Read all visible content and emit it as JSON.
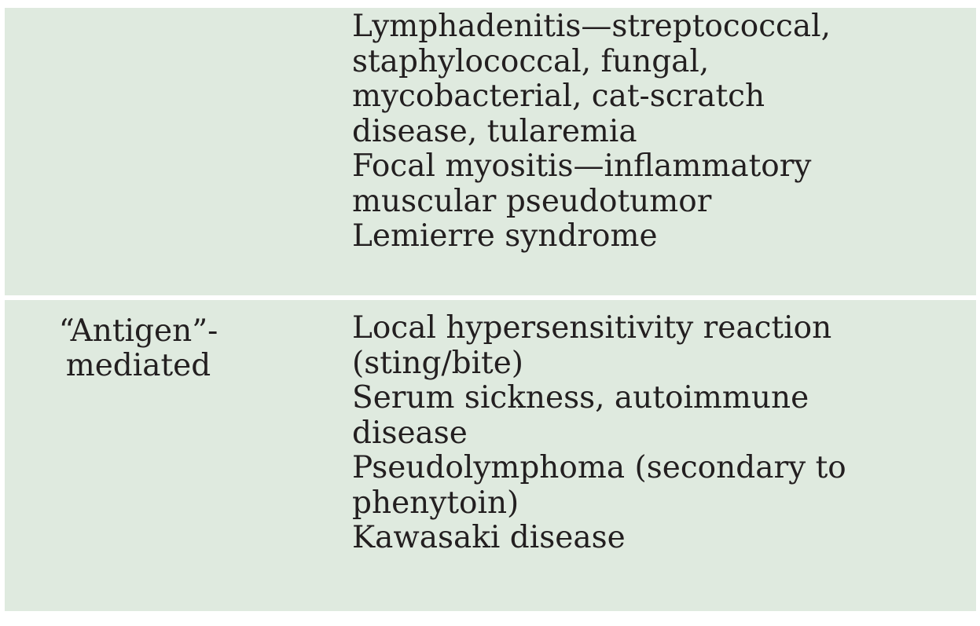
{
  "rows": [
    {
      "category": "",
      "items": [
        [
          "Lymphadenitis—streptococcal,",
          "staphylococcal, fungal,",
          "mycobacterial, cat-scratch",
          "disease, tularemia"
        ],
        [
          "Focal myositis—inflammatory",
          "muscular pseudotumor"
        ],
        [
          "Lemierre syndrome"
        ]
      ]
    },
    {
      "category": "“Antigen”-\nmediated",
      "items": [
        [
          "Local hypersensitivity reaction",
          "(sting/bite)"
        ],
        [
          "Serum sickness, autoimmune",
          "disease"
        ],
        [
          "Pseudolymphoma (secondary to",
          "phenytoin)"
        ],
        [
          "Kawasaki disease"
        ]
      ]
    }
  ]
}
